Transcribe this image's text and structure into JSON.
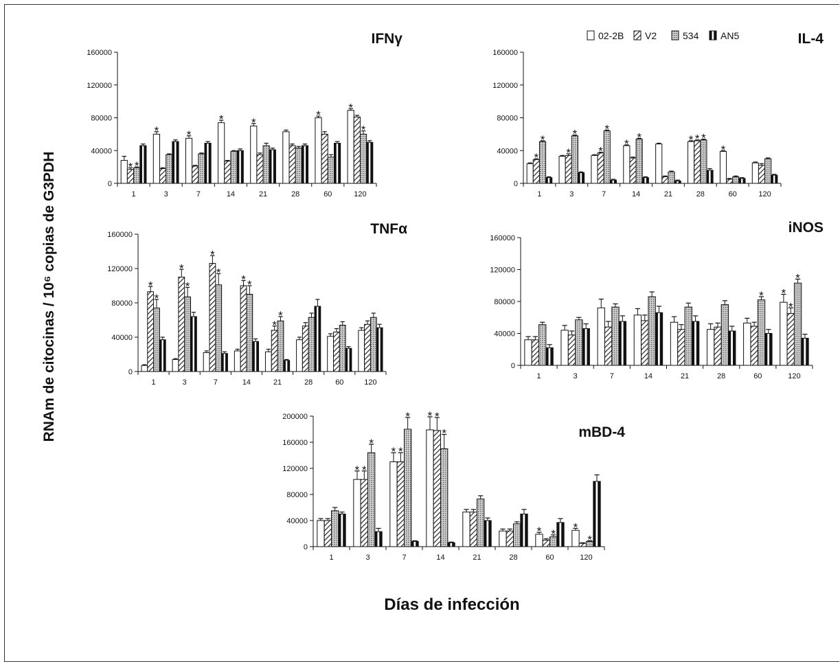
{
  "figure": {
    "ylabel": "RNAm de citocinas / 10⁶ copias de G3PDH",
    "xlabel": "Días de infección"
  },
  "legend": {
    "items": [
      {
        "label": "02-2B",
        "pattern": "white"
      },
      {
        "label": "V2",
        "pattern": "diag"
      },
      {
        "label": "534",
        "pattern": "dots"
      },
      {
        "label": "AN5",
        "pattern": "black"
      }
    ]
  },
  "colors": {
    "bar_stroke": "#111111",
    "diag": "#333333",
    "dots": "#777777",
    "solid": "#111111"
  },
  "chart_data": [
    {
      "type": "bar",
      "title": "IFNγ",
      "categories": [
        "1",
        "3",
        "7",
        "14",
        "21",
        "28",
        "60",
        "120"
      ],
      "ylim": [
        0,
        160000
      ],
      "yticks": [
        "0",
        "40000",
        "80000",
        "120000",
        "160000"
      ],
      "series": [
        {
          "name": "02-2B",
          "values": [
            28000,
            60000,
            55000,
            74000,
            70000,
            63000,
            80000,
            89000
          ],
          "errors": [
            5000,
            3000,
            3000,
            3000,
            3000,
            2000,
            2000,
            2000
          ]
        },
        {
          "name": "V2",
          "values": [
            17000,
            18000,
            21000,
            27000,
            35000,
            46000,
            60000,
            81000
          ],
          "errors": [
            2000,
            1000,
            1000,
            1000,
            2000,
            2000,
            3000,
            2000
          ]
        },
        {
          "name": "534",
          "values": [
            19000,
            35000,
            36000,
            39000,
            46000,
            43000,
            32000,
            60000
          ],
          "errors": [
            1000,
            1000,
            1000,
            1000,
            3000,
            2000,
            3000,
            4000
          ]
        },
        {
          "name": "AN5",
          "values": [
            46000,
            51000,
            49000,
            40000,
            41000,
            46000,
            49000,
            50000
          ],
          "errors": [
            2000,
            2000,
            2000,
            2000,
            2000,
            2000,
            2000,
            2000
          ]
        }
      ],
      "annotations": [
        {
          "cat": 0,
          "series": 1,
          "label": "*"
        },
        {
          "cat": 0,
          "series": 2,
          "label": "*"
        },
        {
          "cat": 1,
          "series": 0,
          "label": "*"
        },
        {
          "cat": 2,
          "series": 0,
          "label": "*"
        },
        {
          "cat": 3,
          "series": 0,
          "label": "*"
        },
        {
          "cat": 4,
          "series": 0,
          "label": "*"
        },
        {
          "cat": 6,
          "series": 0,
          "label": "*"
        },
        {
          "cat": 7,
          "series": 0,
          "label": "*"
        },
        {
          "cat": 7,
          "series": 2,
          "label": "*"
        }
      ]
    },
    {
      "type": "bar",
      "title": "IL-4",
      "categories": [
        "1",
        "3",
        "7",
        "14",
        "21",
        "28",
        "60",
        "120"
      ],
      "ylim": [
        0,
        160000
      ],
      "yticks": [
        "0",
        "40000",
        "80000",
        "120000",
        "160000"
      ],
      "series": [
        {
          "name": "02-2B",
          "values": [
            24000,
            33000,
            34000,
            46000,
            48000,
            51000,
            39000,
            25000
          ],
          "errors": [
            1000,
            1000,
            1000,
            1000,
            1000,
            1000,
            1000,
            1000
          ]
        },
        {
          "name": "V2",
          "values": [
            29000,
            34000,
            37000,
            31000,
            8000,
            52000,
            5000,
            22000
          ],
          "errors": [
            1000,
            2000,
            1000,
            1000,
            1000,
            1000,
            1000,
            2000
          ]
        },
        {
          "name": "534",
          "values": [
            51000,
            58000,
            64000,
            54000,
            14000,
            53000,
            8000,
            30000
          ],
          "errors": [
            1000,
            1000,
            1000,
            1000,
            1000,
            1000,
            1000,
            1000
          ]
        },
        {
          "name": "AN5",
          "values": [
            7000,
            13000,
            4000,
            7000,
            3000,
            16000,
            6000,
            10000
          ],
          "errors": [
            1000,
            1000,
            1000,
            1000,
            1000,
            2000,
            1000,
            1000
          ]
        }
      ],
      "annotations": [
        {
          "cat": 0,
          "series": 1,
          "label": "*"
        },
        {
          "cat": 0,
          "series": 2,
          "label": "*"
        },
        {
          "cat": 1,
          "series": 1,
          "label": "*"
        },
        {
          "cat": 1,
          "series": 2,
          "label": "*"
        },
        {
          "cat": 2,
          "series": 1,
          "label": "*"
        },
        {
          "cat": 2,
          "series": 2,
          "label": "*"
        },
        {
          "cat": 3,
          "series": 0,
          "label": "*"
        },
        {
          "cat": 3,
          "series": 2,
          "label": "*"
        },
        {
          "cat": 5,
          "series": 0,
          "label": "*"
        },
        {
          "cat": 5,
          "series": 1,
          "label": "*"
        },
        {
          "cat": 5,
          "series": 2,
          "label": "*"
        },
        {
          "cat": 6,
          "series": 0,
          "label": "*"
        }
      ]
    },
    {
      "type": "bar",
      "title": "TNFα",
      "categories": [
        "1",
        "3",
        "7",
        "14",
        "21",
        "28",
        "60",
        "120"
      ],
      "ylim": [
        0,
        160000
      ],
      "yticks": [
        "0",
        "40000",
        "80000",
        "120000",
        "160000"
      ],
      "series": [
        {
          "name": "02-2B",
          "values": [
            7000,
            14000,
            22000,
            24000,
            23000,
            37000,
            41000,
            48000
          ],
          "errors": [
            1000,
            1000,
            2000,
            2000,
            3000,
            3000,
            3000,
            3000
          ]
        },
        {
          "name": "V2",
          "values": [
            93000,
            110000,
            126000,
            100000,
            48000,
            53000,
            46000,
            55000
          ],
          "errors": [
            6000,
            9000,
            9000,
            6000,
            5000,
            4000,
            4000,
            4000
          ]
        },
        {
          "name": "534",
          "values": [
            74000,
            87000,
            101000,
            90000,
            59000,
            63000,
            54000,
            63000
          ],
          "errors": [
            10000,
            11000,
            13000,
            10000,
            5000,
            5000,
            4000,
            5000
          ]
        },
        {
          "name": "AN5",
          "values": [
            37000,
            64000,
            21000,
            35000,
            13000,
            76000,
            27000,
            51000
          ],
          "errors": [
            3000,
            5000,
            2000,
            3000,
            1000,
            8000,
            2000,
            4000
          ]
        }
      ],
      "annotations": [
        {
          "cat": 0,
          "series": 1,
          "label": "*"
        },
        {
          "cat": 0,
          "series": 2,
          "label": "*"
        },
        {
          "cat": 1,
          "series": 1,
          "label": "*"
        },
        {
          "cat": 1,
          "series": 2,
          "label": "*"
        },
        {
          "cat": 2,
          "series": 1,
          "label": "*"
        },
        {
          "cat": 2,
          "series": 2,
          "label": "*"
        },
        {
          "cat": 3,
          "series": 1,
          "label": "*"
        },
        {
          "cat": 3,
          "series": 2,
          "label": "*"
        },
        {
          "cat": 4,
          "series": 1,
          "label": "*"
        },
        {
          "cat": 4,
          "series": 2,
          "label": "*"
        }
      ]
    },
    {
      "type": "bar",
      "title": "iNOS",
      "categories": [
        "1",
        "3",
        "7",
        "14",
        "21",
        "28",
        "60",
        "120"
      ],
      "ylim": [
        0,
        160000
      ],
      "yticks": [
        "0",
        "40000",
        "80000",
        "120000",
        "160000"
      ],
      "series": [
        {
          "name": "02-2B",
          "values": [
            32000,
            44000,
            72000,
            63000,
            54000,
            45000,
            53000,
            79000
          ],
          "errors": [
            4000,
            6000,
            11000,
            8000,
            7000,
            7000,
            6000,
            10000
          ]
        },
        {
          "name": "V2",
          "values": [
            32000,
            38000,
            48000,
            56000,
            45000,
            48000,
            49000,
            65000
          ],
          "errors": [
            4000,
            5000,
            7000,
            7000,
            6000,
            5000,
            5000,
            7000
          ]
        },
        {
          "name": "534",
          "values": [
            51000,
            57000,
            73000,
            86000,
            73000,
            76000,
            82000,
            103000
          ],
          "errors": [
            3000,
            3000,
            4000,
            6000,
            5000,
            5000,
            4000,
            5000
          ]
        },
        {
          "name": "AN5",
          "values": [
            22000,
            46000,
            55000,
            66000,
            55000,
            43000,
            40000,
            34000
          ],
          "errors": [
            4000,
            6000,
            7000,
            8000,
            7000,
            6000,
            5000,
            5000
          ]
        }
      ],
      "annotations": [
        {
          "cat": 6,
          "series": 2,
          "label": "*"
        },
        {
          "cat": 7,
          "series": 0,
          "label": "*"
        },
        {
          "cat": 7,
          "series": 1,
          "label": "*"
        },
        {
          "cat": 7,
          "series": 2,
          "label": "*"
        }
      ]
    },
    {
      "type": "bar",
      "title": "mBD-4",
      "categories": [
        "1",
        "3",
        "7",
        "14",
        "21",
        "28",
        "60",
        "120"
      ],
      "ylim": [
        0,
        200000
      ],
      "yticks": [
        "0",
        "40000",
        "80000",
        "120000",
        "160000",
        "200000"
      ],
      "series": [
        {
          "name": "02-2B",
          "values": [
            40000,
            103000,
            130000,
            179000,
            53000,
            24000,
            19000,
            25000
          ],
          "errors": [
            3000,
            13000,
            14000,
            20000,
            4000,
            3000,
            3000,
            3000
          ]
        },
        {
          "name": "V2",
          "values": [
            40000,
            103000,
            130000,
            178000,
            53000,
            24000,
            10000,
            5000
          ],
          "errors": [
            3000,
            13000,
            14000,
            20000,
            4000,
            3000,
            2000,
            1000
          ]
        },
        {
          "name": "534",
          "values": [
            55000,
            144000,
            180000,
            150000,
            73000,
            35000,
            15000,
            8000
          ],
          "errors": [
            5000,
            13000,
            18000,
            22000,
            5000,
            3000,
            3000,
            1000
          ]
        },
        {
          "name": "AN5",
          "values": [
            50000,
            23000,
            8000,
            6000,
            40000,
            50000,
            37000,
            100000
          ],
          "errors": [
            3000,
            5000,
            1000,
            1000,
            4000,
            7000,
            6000,
            10000
          ]
        }
      ],
      "annotations": [
        {
          "cat": 1,
          "series": 0,
          "label": "*"
        },
        {
          "cat": 1,
          "series": 1,
          "label": "*"
        },
        {
          "cat": 1,
          "series": 2,
          "label": "*"
        },
        {
          "cat": 2,
          "series": 0,
          "label": "*"
        },
        {
          "cat": 2,
          "series": 1,
          "label": "*"
        },
        {
          "cat": 2,
          "series": 2,
          "label": "*"
        },
        {
          "cat": 3,
          "series": 0,
          "label": "*"
        },
        {
          "cat": 3,
          "series": 1,
          "label": "*"
        },
        {
          "cat": 3,
          "series": 2,
          "label": "*"
        },
        {
          "cat": 6,
          "series": 0,
          "label": "*"
        },
        {
          "cat": 6,
          "series": 2,
          "label": "*"
        },
        {
          "cat": 7,
          "series": 0,
          "label": "*"
        },
        {
          "cat": 7,
          "series": 2,
          "label": "*"
        }
      ]
    }
  ]
}
